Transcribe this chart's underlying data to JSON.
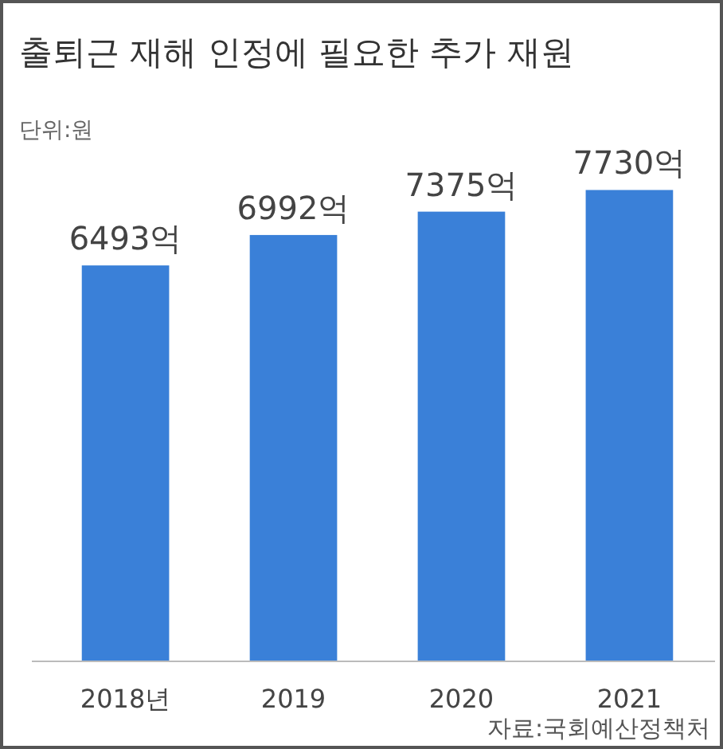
{
  "chart_data": {
    "type": "bar",
    "title": "출퇴근 재해 인정에 필요한 추가 재원",
    "subtitle": "단위:원",
    "annotations": [
      "자료:국회예산정책처"
    ],
    "categories": [
      "2018년",
      "2019",
      "2020",
      "2021"
    ],
    "values": [
      6493,
      6992,
      7375,
      7730
    ],
    "value_labels": [
      "6493억",
      "6992억",
      "7375억",
      "7730억"
    ],
    "color": "#3a80d8"
  }
}
